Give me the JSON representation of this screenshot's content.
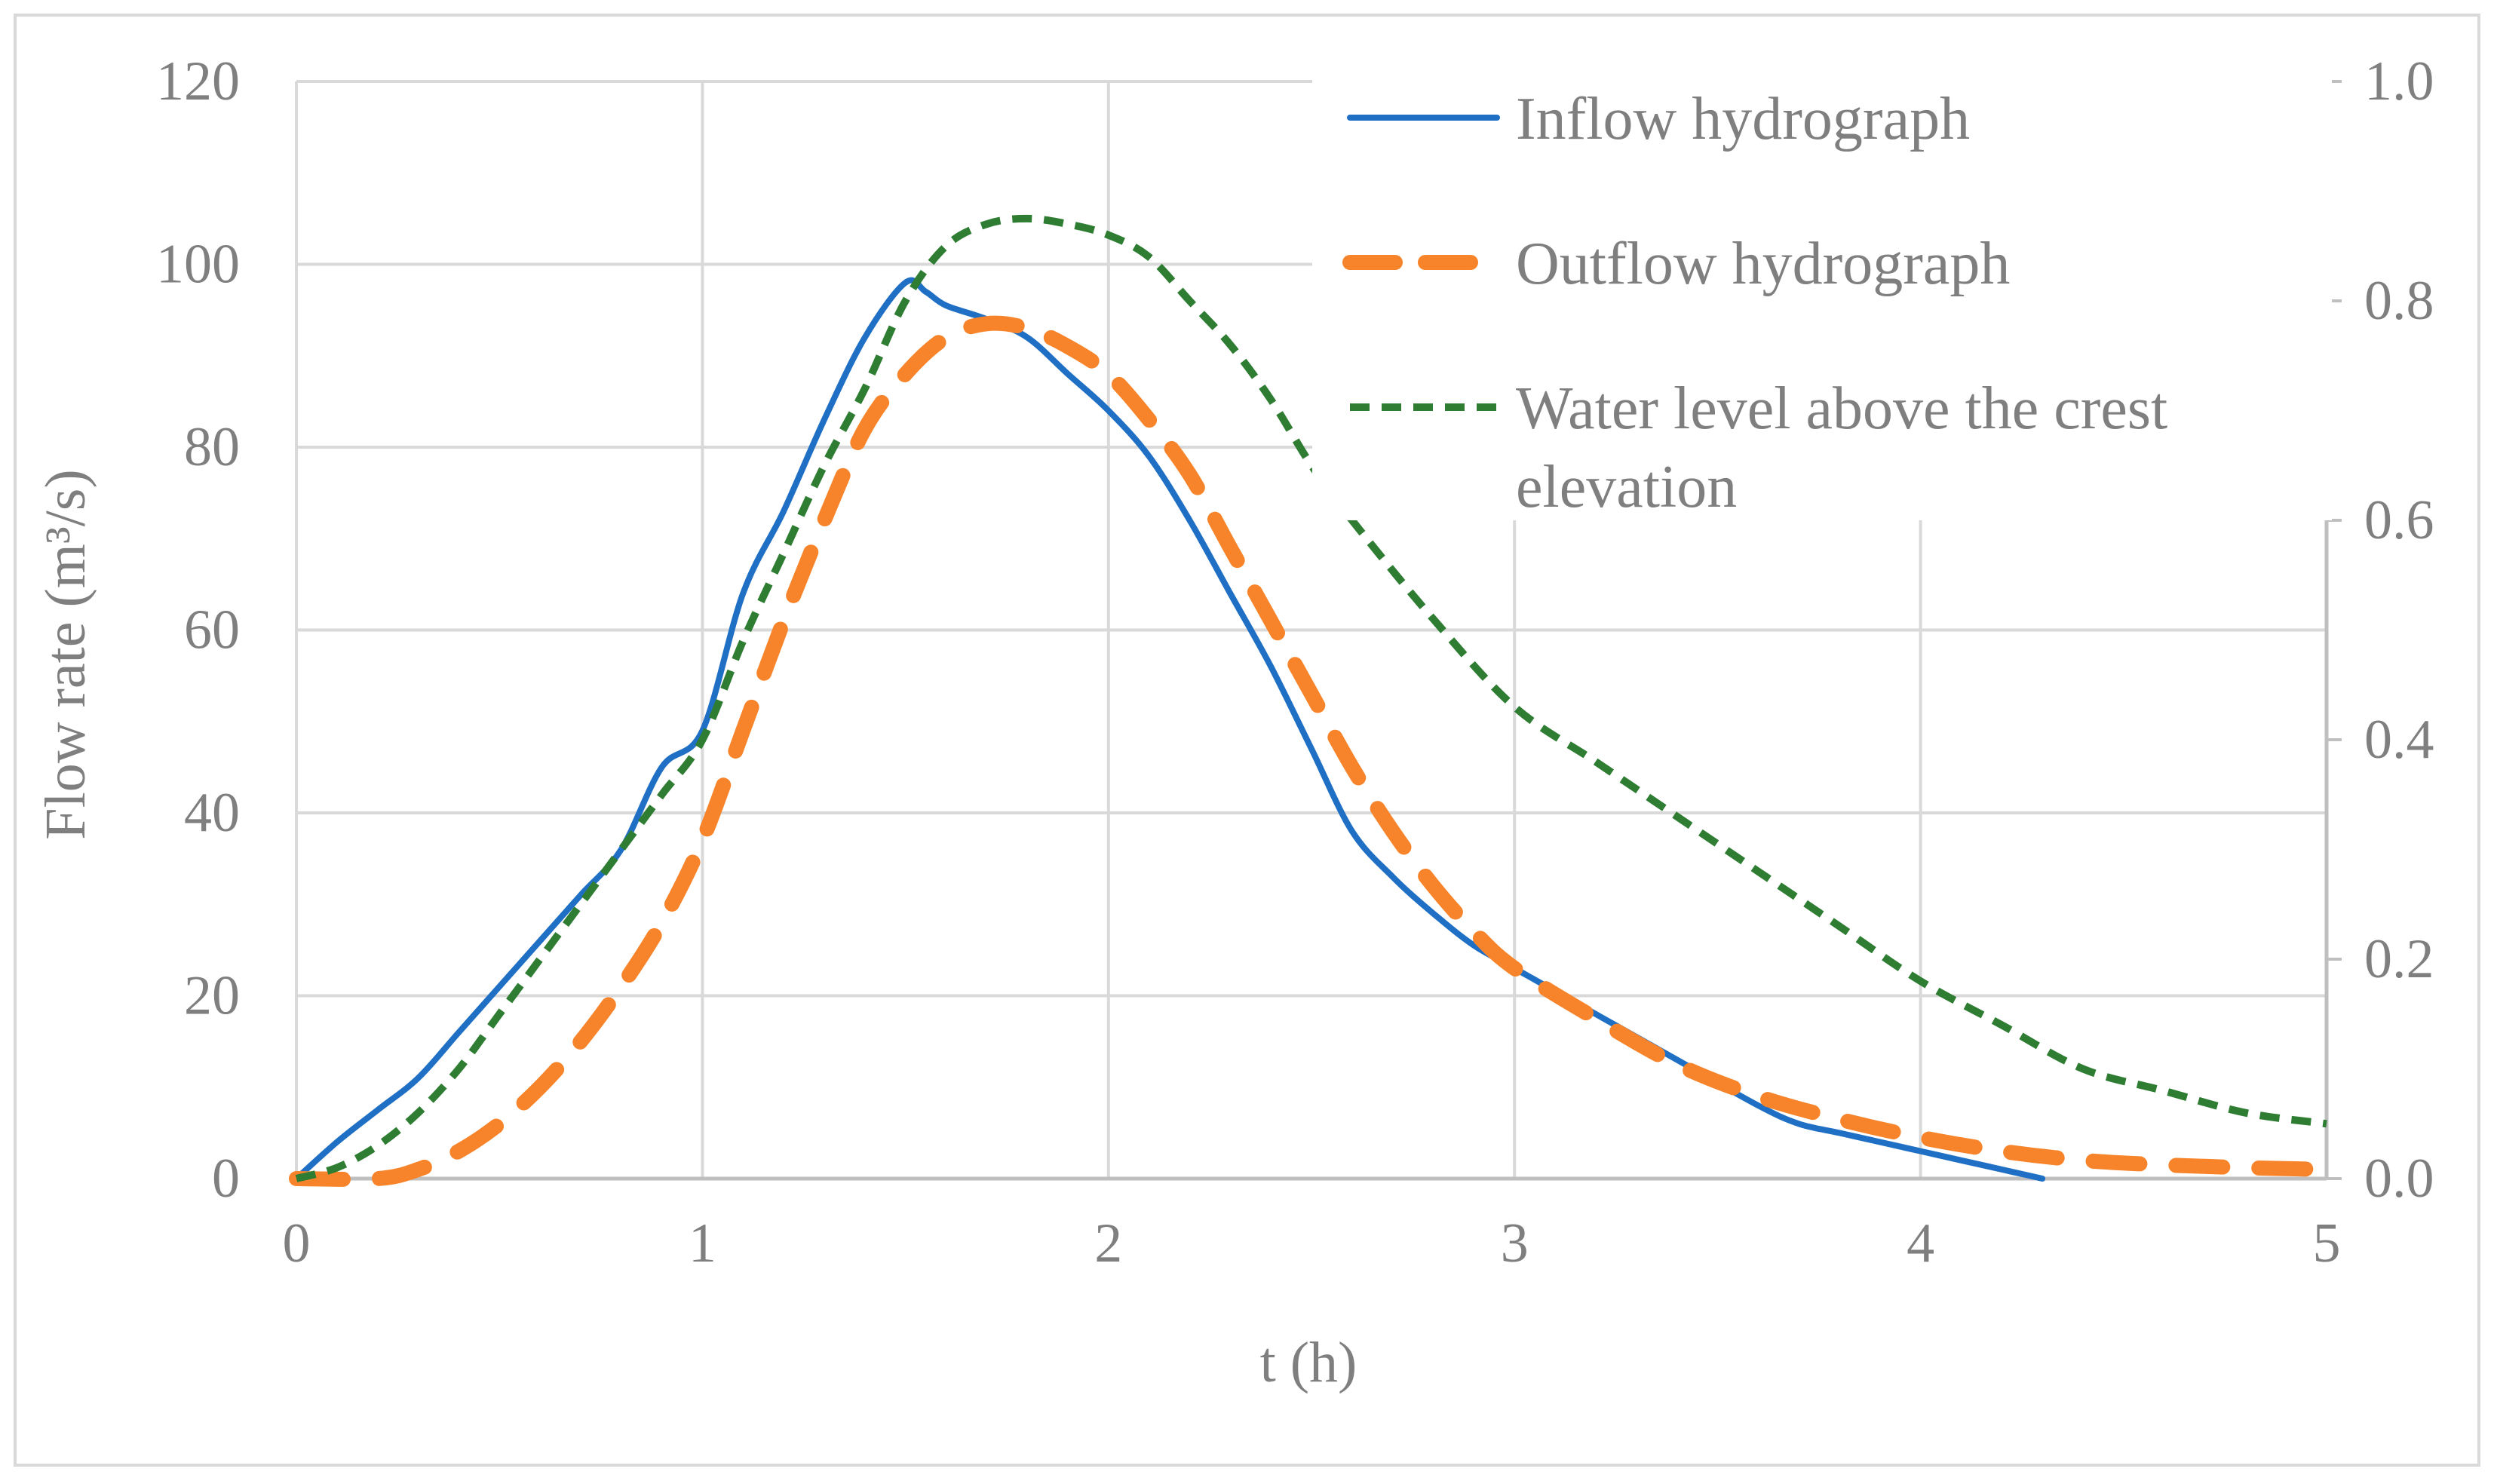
{
  "chart_data": {
    "type": "line",
    "title": "",
    "xlabel": "t (h)",
    "ylabel": "Flow rate (m³/s)",
    "xlim": [
      0,
      5
    ],
    "ylim": [
      0,
      120
    ],
    "y2lim": [
      0,
      1.0
    ],
    "grid": true,
    "legend_position": "top-right",
    "x_ticks": [
      "0",
      "1",
      "2",
      "3",
      "4",
      "5"
    ],
    "y_ticks": [
      "0",
      "20",
      "40",
      "60",
      "80",
      "100",
      "120"
    ],
    "y2_ticks": [
      "0.0",
      "0.2",
      "0.4",
      "0.6",
      "0.8",
      "1.0"
    ],
    "series": [
      {
        "name": "Inflow hydrograph",
        "axis": "left",
        "color": "#1f6fc5",
        "style": "solid",
        "x": [
          0,
          0.1,
          0.2,
          0.3,
          0.4,
          0.5,
          0.6,
          0.7,
          0.8,
          0.9,
          1.0,
          1.1,
          1.2,
          1.3,
          1.4,
          1.5,
          1.55,
          1.6,
          1.7,
          1.8,
          1.9,
          2.0,
          2.1,
          2.2,
          2.3,
          2.4,
          2.5,
          2.6,
          2.7,
          2.8,
          2.9,
          3.0,
          3.2,
          3.4,
          3.6,
          3.7,
          3.8,
          3.9,
          4.0,
          4.1,
          4.2,
          4.3
        ],
        "values": [
          0,
          4,
          7.5,
          11,
          16,
          21,
          26,
          31,
          36,
          45,
          49,
          64,
          73,
          83,
          92,
          98,
          97,
          95.5,
          94,
          92,
          88,
          84,
          79,
          72,
          64,
          56,
          47,
          38,
          33,
          29,
          25.5,
          23,
          18,
          13,
          8,
          6,
          5,
          4,
          3,
          2,
          1,
          0
        ]
      },
      {
        "name": "Outflow hydrograph",
        "axis": "left",
        "color": "#f7842a",
        "style": "dashed",
        "x": [
          0,
          0.2,
          0.3,
          0.4,
          0.5,
          0.6,
          0.7,
          0.8,
          0.9,
          1.0,
          1.1,
          1.2,
          1.3,
          1.4,
          1.5,
          1.6,
          1.7,
          1.8,
          1.9,
          2.0,
          2.1,
          2.2,
          2.3,
          2.4,
          2.5,
          2.6,
          2.7,
          2.8,
          2.9,
          3.0,
          3.2,
          3.4,
          3.6,
          3.8,
          4.0,
          4.2,
          4.4,
          4.6,
          4.8,
          5.0
        ],
        "values": [
          0,
          0,
          1,
          3,
          6,
          10,
          15,
          21,
          28,
          37,
          49,
          61,
          72,
          82,
          88,
          92,
          93.5,
          93,
          91,
          88,
          83,
          77,
          69,
          61,
          53,
          45,
          38,
          32,
          27,
          23,
          17.5,
          12.5,
          9,
          6.5,
          4.5,
          3,
          2,
          1.5,
          1.2,
          1
        ]
      },
      {
        "name": "Water level above the crest elevation",
        "axis": "right",
        "color": "#2e7d32",
        "style": "dotted",
        "x": [
          0,
          0.1,
          0.2,
          0.3,
          0.4,
          0.5,
          0.6,
          0.7,
          0.8,
          0.9,
          1.0,
          1.1,
          1.2,
          1.3,
          1.4,
          1.5,
          1.6,
          1.7,
          1.8,
          1.9,
          2.0,
          2.1,
          2.2,
          2.3,
          2.4,
          2.5,
          2.6,
          2.8,
          3.0,
          3.2,
          3.4,
          3.6,
          3.8,
          4.0,
          4.2,
          4.4,
          4.6,
          4.8,
          5.0
        ],
        "values": [
          0,
          0.01,
          0.03,
          0.06,
          0.1,
          0.15,
          0.2,
          0.25,
          0.3,
          0.35,
          0.4,
          0.49,
          0.57,
          0.65,
          0.72,
          0.8,
          0.85,
          0.87,
          0.875,
          0.87,
          0.86,
          0.84,
          0.8,
          0.76,
          0.71,
          0.65,
          0.6,
          0.51,
          0.43,
          0.38,
          0.33,
          0.28,
          0.23,
          0.18,
          0.14,
          0.1,
          0.08,
          0.06,
          0.05
        ]
      }
    ]
  }
}
